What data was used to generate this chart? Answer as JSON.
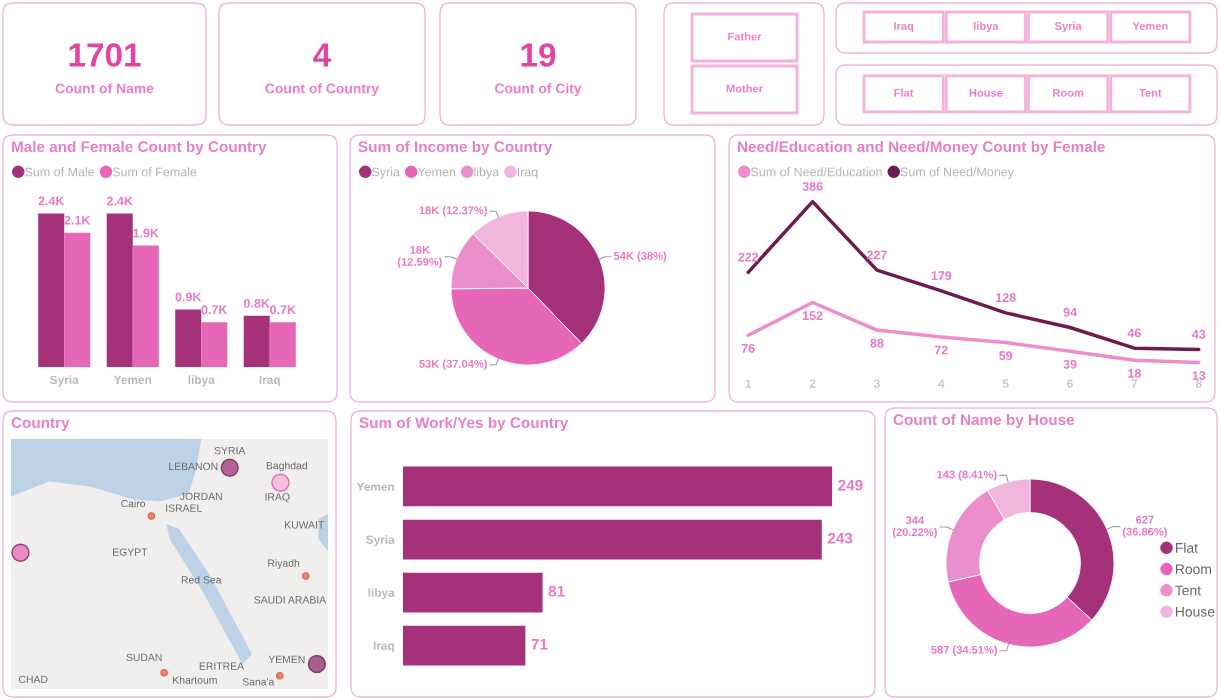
{
  "chart_data": [
    {
      "type": "other",
      "categories": [
        "Count of Name"
      ],
      "values": [
        1701
      ],
      "data_labels": true
    },
    {
      "type": "other",
      "categories": [
        "Count of Country"
      ],
      "values": [
        4
      ],
      "data_labels": true
    },
    {
      "type": "other",
      "categories": [
        "Count of City"
      ],
      "values": [
        19
      ],
      "data_labels": true
    },
    {
      "type": "other",
      "categories": [
        "Father",
        "Mother"
      ]
    },
    {
      "type": "other",
      "categories": [
        "Iraq",
        "libya",
        "Syria",
        "Yemen"
      ]
    },
    {
      "type": "other",
      "categories": [
        "Flat",
        "House",
        "Room",
        "Tent"
      ]
    },
    {
      "type": "bar",
      "title": "Male and Female Count by Country",
      "categories": [
        "Syria",
        "Yemen",
        "libya",
        "Iraq"
      ],
      "series": [
        {
          "name": "Sum of Male",
          "color": "#a4317a",
          "values": [
            2400,
            2400,
            900,
            800
          ],
          "value_labels": [
            "2.4K",
            "2.4K",
            "0.9K",
            "0.8K"
          ]
        },
        {
          "name": "Sum of Female",
          "color": "#e667b8",
          "values": [
            2100,
            1900,
            700,
            700
          ],
          "value_labels": [
            "2.1K",
            "1.9K",
            "0.7K",
            "0.7K"
          ]
        }
      ],
      "legend": "top left",
      "tick_labels": "x"
    },
    {
      "type": "pie",
      "title": "Sum of Income by Country",
      "categories": [
        "Syria",
        "Yemen",
        "libya",
        "Iraq"
      ],
      "values": [
        54000,
        53000,
        18000,
        18000
      ],
      "colors": [
        "#a4317a",
        "#e667b8",
        "#ea8fcb",
        "#f1b5de"
      ],
      "value_labels": [
        "54K (38%)",
        "53K (37.04%)",
        "18K\n(12.59%)",
        "18K (12.37%)"
      ],
      "legend": "top left"
    },
    {
      "type": "line",
      "title": "Need/Education and Need/Money Count by Female",
      "categories": [
        "1",
        "2",
        "3",
        "4",
        "5",
        "6",
        "7",
        "8"
      ],
      "series": [
        {
          "name": "Sum of Need/Education",
          "color": "#ee8dca",
          "values": [
            76,
            152,
            88,
            72,
            59,
            39,
            18,
            13
          ]
        },
        {
          "name": "Sum of Need/Money",
          "color": "#6e1c4f",
          "values": [
            222,
            386,
            227,
            179,
            128,
            94,
            46,
            43
          ]
        }
      ],
      "data_labels": true,
      "legend": "top left",
      "tick_labels": "x"
    },
    {
      "type": "other",
      "title": "Country",
      "annotations": [
        "SYRIA",
        "LEBANON",
        "Baghdad",
        "IRAQ",
        "JORDAN",
        "ISRAEL",
        "Cairo",
        "KUWAIT",
        "EGYPT",
        "Riyadh",
        "Red Sea",
        "SAUDI ARABIA",
        "SUDAN",
        "ERITREA",
        "YEMEN",
        "CHAD",
        "Khartoum",
        "Sana'a"
      ]
    },
    {
      "type": "bar",
      "orientation": "horizontal",
      "title": "Sum of Work/Yes by Country",
      "categories": [
        "Yemen",
        "Syria",
        "libya",
        "Iraq"
      ],
      "values": [
        249,
        243,
        81,
        71
      ],
      "color": "#a4317a",
      "data_labels": true,
      "tick_labels": "y"
    },
    {
      "type": "donut",
      "title": "Count of Name by House",
      "categories": [
        "Flat",
        "Room",
        "Tent",
        "House"
      ],
      "values": [
        627,
        587,
        344,
        143
      ],
      "colors": [
        "#a4317a",
        "#e667b8",
        "#ea8fcb",
        "#f1b5de"
      ],
      "value_labels": [
        "627\n(36.86%)",
        "587 (34.51%)",
        "344\n(20.22%)",
        "143 (8.41%)"
      ],
      "legend": "right"
    }
  ]
}
